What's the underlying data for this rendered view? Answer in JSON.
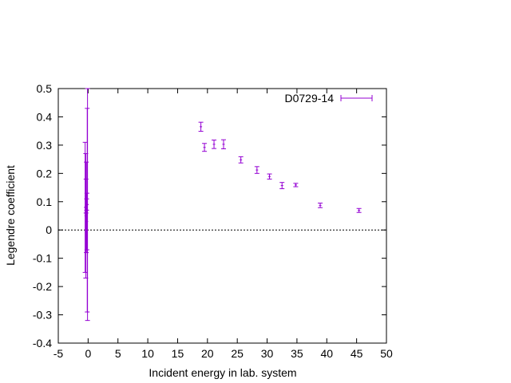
{
  "chart_data": {
    "type": "scatter",
    "title": "",
    "xlabel": "Incident energy in lab. system",
    "ylabel": "Legendre coefficient",
    "xlim": [
      -5,
      50
    ],
    "ylim": [
      -0.4,
      0.5
    ],
    "x_ticks": [
      -5,
      0,
      5,
      10,
      15,
      20,
      25,
      30,
      35,
      40,
      45,
      50
    ],
    "y_ticks": [
      -0.4,
      -0.3,
      -0.2,
      -0.1,
      0,
      0.1,
      0.2,
      0.3,
      0.4,
      0.5
    ],
    "x_tick_labels": [
      "-5",
      "0",
      "5",
      "10",
      "15",
      "20",
      "25",
      "30",
      "35",
      "40",
      "45",
      "50"
    ],
    "y_tick_labels": [
      "-0.4",
      "-0.3",
      "-0.2",
      "-0.1",
      "0",
      "0.1",
      "0.2",
      "0.3",
      "0.4",
      "0.5"
    ],
    "grid": false,
    "legend_position": "top-right",
    "zero_line": true,
    "series": [
      {
        "name": "D0729-14",
        "color": "#9400d3",
        "points": [
          {
            "x": -0.5,
            "y": 0.08,
            "yerr": 0.23
          },
          {
            "x": -0.4,
            "y": 0.05,
            "yerr": 0.22
          },
          {
            "x": -0.35,
            "y": 0.12,
            "yerr": 0.06
          },
          {
            "x": -0.3,
            "y": 0.08,
            "yerr": 0.16
          },
          {
            "x": -0.25,
            "y": 0.09,
            "yerr": 0.02
          },
          {
            "x": -0.2,
            "y": 0.03,
            "yerr": 0.1
          },
          {
            "x": -0.15,
            "y": 0.07,
            "yerr": 0.36
          },
          {
            "x": -0.1,
            "y": 0.09,
            "yerr": 0.41
          },
          {
            "x": 18.9,
            "y": 0.365,
            "yerr": 0.016
          },
          {
            "x": 19.5,
            "y": 0.292,
            "yerr": 0.014
          },
          {
            "x": 21.1,
            "y": 0.303,
            "yerr": 0.015
          },
          {
            "x": 22.7,
            "y": 0.303,
            "yerr": 0.016
          },
          {
            "x": 25.6,
            "y": 0.248,
            "yerr": 0.011
          },
          {
            "x": 28.3,
            "y": 0.212,
            "yerr": 0.012
          },
          {
            "x": 30.4,
            "y": 0.189,
            "yerr": 0.009
          },
          {
            "x": 32.5,
            "y": 0.157,
            "yerr": 0.011
          },
          {
            "x": 34.8,
            "y": 0.159,
            "yerr": 0.006
          },
          {
            "x": 38.9,
            "y": 0.087,
            "yerr": 0.008
          },
          {
            "x": 45.4,
            "y": 0.069,
            "yerr": 0.007
          }
        ]
      }
    ]
  }
}
